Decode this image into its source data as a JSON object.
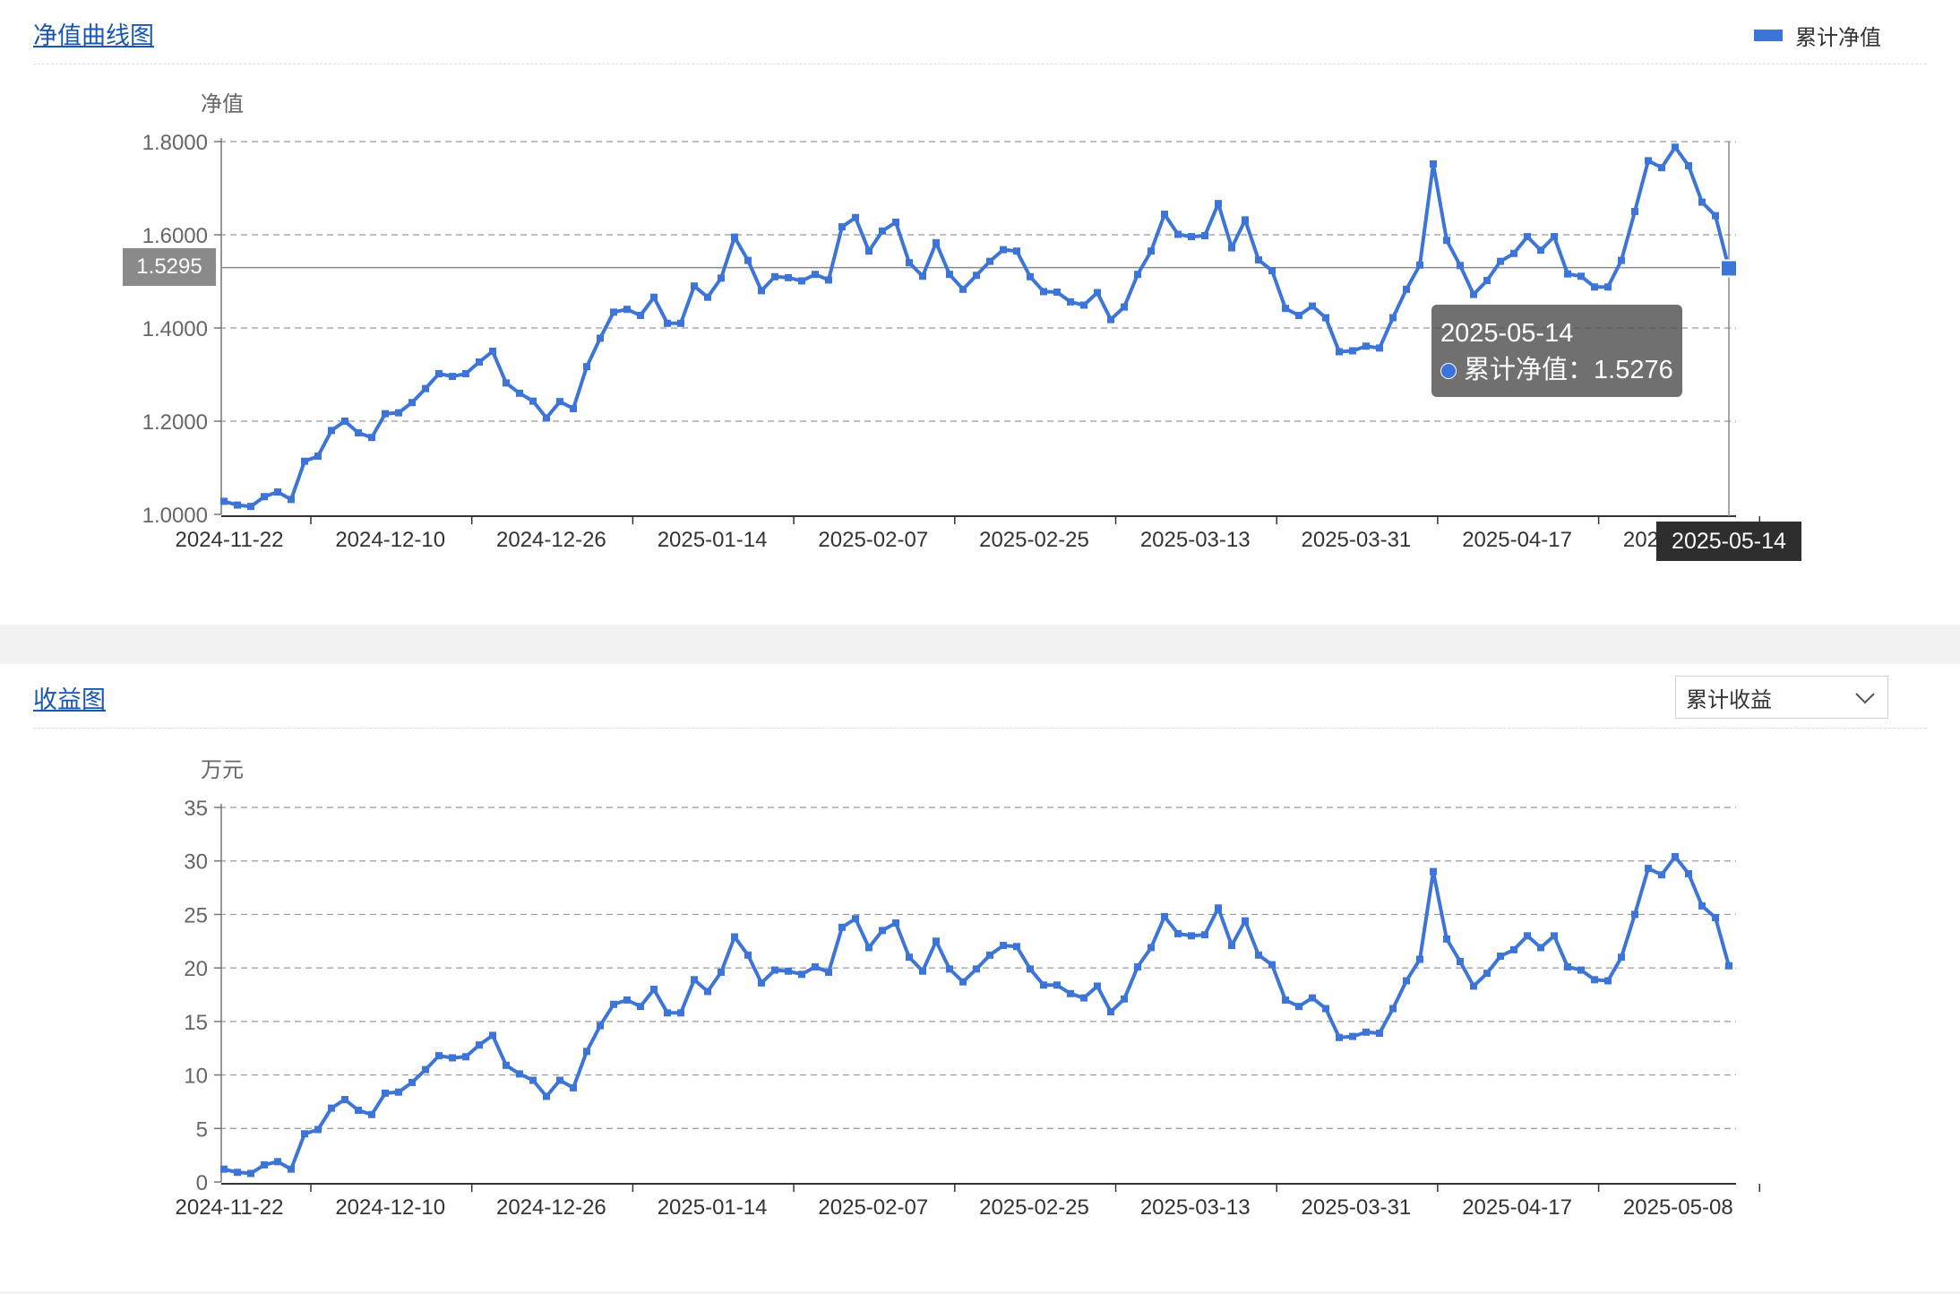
{
  "nav_panel": {
    "title": "净值曲线图",
    "legend_label": "累计净值",
    "tooltip": {
      "date": "2025-05-14",
      "label": "累计净值：",
      "value": "1.5276"
    },
    "pointer_y_value": "1.5295",
    "pointer_x_value": "2025-05-14"
  },
  "profit_panel": {
    "title": "收益图",
    "select_value": "累计收益"
  },
  "colors": {
    "line": "#3d74d8",
    "title": "#1a56b3"
  },
  "chart_data": [
    {
      "type": "line",
      "ylabel": "净值",
      "ylim": [
        1.0,
        1.8
      ],
      "yticks": [
        "1.0000",
        "1.2000",
        "1.4000",
        "1.6000",
        "1.8000"
      ],
      "xticks": [
        "2024-11-22",
        "2024-12-10",
        "2024-12-26",
        "2025-01-14",
        "2025-02-07",
        "2025-02-25",
        "2025-03-13",
        "2025-03-31",
        "2025-04-17",
        "2025-05-08"
      ],
      "grid": true,
      "legend_position": "top-right",
      "series": [
        {
          "name": "累计净值",
          "values": [
            1.028,
            1.02,
            1.017,
            1.038,
            1.048,
            1.032,
            1.114,
            1.125,
            1.18,
            1.2,
            1.175,
            1.165,
            1.216,
            1.218,
            1.24,
            1.27,
            1.302,
            1.296,
            1.302,
            1.327,
            1.35,
            1.282,
            1.26,
            1.243,
            1.207,
            1.242,
            1.227,
            1.317,
            1.378,
            1.434,
            1.44,
            1.427,
            1.466,
            1.41,
            1.41,
            1.49,
            1.466,
            1.507,
            1.595,
            1.545,
            1.48,
            1.51,
            1.508,
            1.501,
            1.515,
            1.503,
            1.617,
            1.637,
            1.565,
            1.608,
            1.627,
            1.54,
            1.511,
            1.583,
            1.515,
            1.483,
            1.513,
            1.543,
            1.568,
            1.565,
            1.51,
            1.478,
            1.477,
            1.456,
            1.449,
            1.476,
            1.418,
            1.445,
            1.515,
            1.565,
            1.644,
            1.601,
            1.596,
            1.598,
            1.667,
            1.572,
            1.632,
            1.546,
            1.523,
            1.442,
            1.427,
            1.447,
            1.422,
            1.349,
            1.351,
            1.361,
            1.357,
            1.422,
            1.483,
            1.535,
            1.752,
            1.588,
            1.534,
            1.472,
            1.502,
            1.543,
            1.56,
            1.596,
            1.567,
            1.596,
            1.516,
            1.511,
            1.488,
            1.488,
            1.545,
            1.65,
            1.759,
            1.744,
            1.788,
            1.748,
            1.67,
            1.641,
            1.528
          ]
        }
      ]
    },
    {
      "type": "line",
      "ylabel": "万元",
      "ylim": [
        0,
        35
      ],
      "yticks": [
        "0",
        "5",
        "10",
        "15",
        "20",
        "25",
        "30",
        "35"
      ],
      "xticks": [
        "2024-11-22",
        "2024-12-10",
        "2024-12-26",
        "2025-01-14",
        "2025-02-07",
        "2025-02-25",
        "2025-03-13",
        "2025-03-31",
        "2025-04-17",
        "2025-05-08"
      ],
      "grid": true,
      "series": [
        {
          "values": [
            1.2,
            0.9,
            0.8,
            1.6,
            1.9,
            1.2,
            4.5,
            4.9,
            6.9,
            7.7,
            6.7,
            6.3,
            8.3,
            8.4,
            9.3,
            10.5,
            11.8,
            11.6,
            11.7,
            12.8,
            13.7,
            10.9,
            10.1,
            9.5,
            8.0,
            9.5,
            8.8,
            12.2,
            14.6,
            16.6,
            17.0,
            16.4,
            18.0,
            15.8,
            15.8,
            18.9,
            17.8,
            19.6,
            22.9,
            21.2,
            18.6,
            19.8,
            19.7,
            19.4,
            20.1,
            19.6,
            23.8,
            24.6,
            21.9,
            23.5,
            24.2,
            21.0,
            19.7,
            22.5,
            19.9,
            18.7,
            19.9,
            21.2,
            22.1,
            22.0,
            19.9,
            18.4,
            18.4,
            17.6,
            17.2,
            18.3,
            15.9,
            17.1,
            20.1,
            21.9,
            24.8,
            23.2,
            23.0,
            23.1,
            25.6,
            22.1,
            24.4,
            21.2,
            20.3,
            17.0,
            16.4,
            17.2,
            16.2,
            13.5,
            13.6,
            14.0,
            13.9,
            16.2,
            18.8,
            20.8,
            29.0,
            22.7,
            20.6,
            18.3,
            19.5,
            21.1,
            21.7,
            23.0,
            21.9,
            23.0,
            20.1,
            19.8,
            18.9,
            18.8,
            21.0,
            25.0,
            29.3,
            28.7,
            30.4,
            28.8,
            25.8,
            24.7,
            20.2
          ]
        }
      ]
    }
  ]
}
